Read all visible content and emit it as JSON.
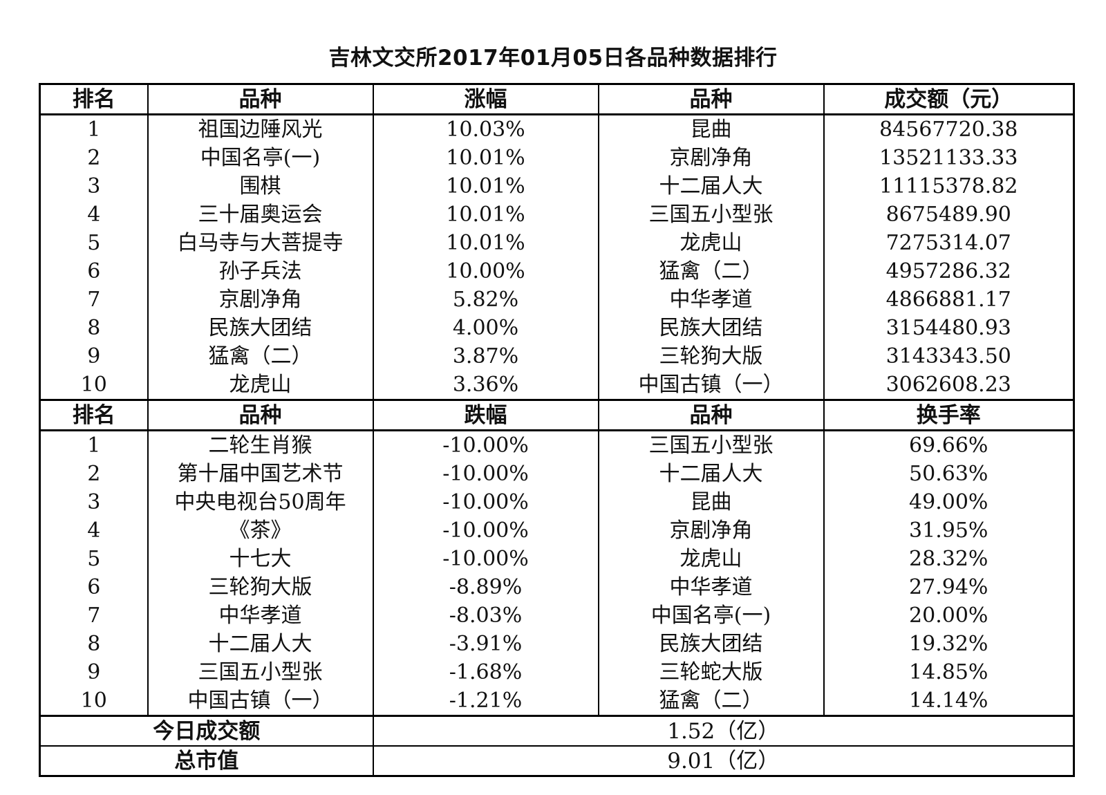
{
  "title": "吉林文交所2017年01月05日各品种数据排行",
  "top_section": {
    "headers": [
      "排名",
      "品种",
      "涨幅",
      "品种",
      "成交额（元）"
    ],
    "rows": [
      [
        "1",
        "祖国边陲风光",
        "10.03%",
        "昆曲",
        "84567720.38"
      ],
      [
        "2",
        "中国名亭(一)",
        "10.01%",
        "京剧净角",
        "13521133.33"
      ],
      [
        "3",
        "围棋",
        "10.01%",
        "十二届人大",
        "11115378.82"
      ],
      [
        "4",
        "三十届奥运会",
        "10.01%",
        "三国五小型张",
        "8675489.90"
      ],
      [
        "5",
        "白马寺与大菩提寺",
        "10.01%",
        "龙虎山",
        "7275314.07"
      ],
      [
        "6",
        "孙子兵法",
        "10.00%",
        "猛禽（二）",
        "4957286.32"
      ],
      [
        "7",
        "京剧净角",
        "5.82%",
        "中华孝道",
        "4866881.17"
      ],
      [
        "8",
        "民族大团结",
        "4.00%",
        "民族大团结",
        "3154480.93"
      ],
      [
        "9",
        "猛禽（二）",
        "3.87%",
        "三轮狗大版",
        "3143343.50"
      ],
      [
        "10",
        "龙虎山",
        "3.36%",
        "中国古镇（一）",
        "3062608.23"
      ]
    ]
  },
  "bottom_section": {
    "headers": [
      "排名",
      "品种",
      "跌幅",
      "品种",
      "换手率"
    ],
    "rows": [
      [
        "1",
        "二轮生肖猴",
        "-10.00%",
        "三国五小型张",
        "69.66%"
      ],
      [
        "2",
        "第十届中国艺术节",
        "-10.00%",
        "十二届人大",
        "50.63%"
      ],
      [
        "3",
        "中央电视台50周年",
        "-10.00%",
        "昆曲",
        "49.00%"
      ],
      [
        "4",
        "《茶》",
        "-10.00%",
        "京剧净角",
        "31.95%"
      ],
      [
        "5",
        "十七大",
        "-10.00%",
        "龙虎山",
        "28.32%"
      ],
      [
        "6",
        "三轮狗大版",
        "-8.89%",
        "中华孝道",
        "27.94%"
      ],
      [
        "7",
        "中华孝道",
        "-8.03%",
        "中国名亭(一)",
        "20.00%"
      ],
      [
        "8",
        "十二届人大",
        "-3.91%",
        "民族大团结",
        "19.32%"
      ],
      [
        "9",
        "三国五小型张",
        "-1.68%",
        "三轮蛇大版",
        "14.85%"
      ],
      [
        "10",
        "中国古镇（一）",
        "-1.21%",
        "猛禽（二）",
        "14.14%"
      ]
    ]
  },
  "summary": {
    "turnover_label": "今日成交额",
    "turnover_value": "1.52（亿）",
    "market_cap_label": "总市值",
    "market_cap_value": "9.01（亿）"
  }
}
